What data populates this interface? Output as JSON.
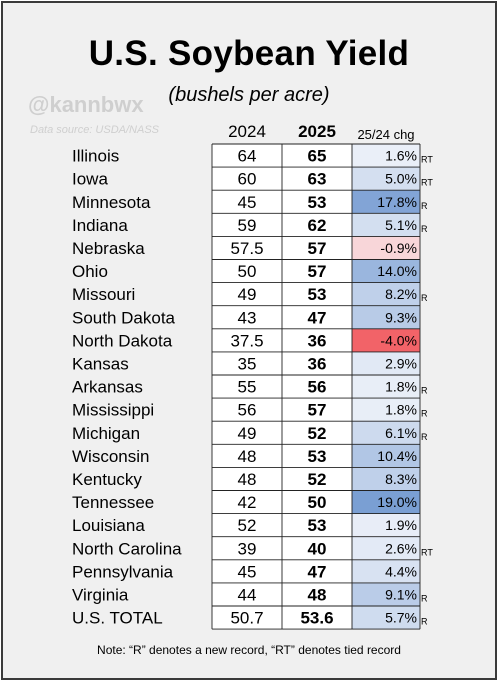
{
  "title": "U.S. Soybean Yield",
  "subtitle": "(bushels per acre)",
  "handle": "@kannbwx",
  "source": "Data source: USDA/NASS",
  "headers": {
    "y2024": "2024",
    "y2025": "2025",
    "chg": "25/24 chg"
  },
  "note": "Note: “R” denotes a new record, “RT” denotes tied record",
  "colors": {
    "pos_max": "#7a9fd3",
    "pos_min": "#f4f6fb",
    "neg_light": "#f8d6d9",
    "neg_strong": "#f26368",
    "border": "#222222"
  },
  "chart_data": {
    "type": "table",
    "title": "U.S. Soybean Yield",
    "subtitle": "(bushels per acre)",
    "columns": [
      "",
      "2024",
      "2025",
      "25/24 chg"
    ],
    "rows": [
      {
        "state": "Illinois",
        "y2024": "64",
        "y2025": "65",
        "chg": "1.6%",
        "chg_value": 1.6,
        "flag": "RT"
      },
      {
        "state": "Iowa",
        "y2024": "60",
        "y2025": "63",
        "chg": "5.0%",
        "chg_value": 5.0,
        "flag": "RT"
      },
      {
        "state": "Minnesota",
        "y2024": "45",
        "y2025": "53",
        "chg": "17.8%",
        "chg_value": 17.8,
        "flag": "R"
      },
      {
        "state": "Indiana",
        "y2024": "59",
        "y2025": "62",
        "chg": "5.1%",
        "chg_value": 5.1,
        "flag": "R"
      },
      {
        "state": "Nebraska",
        "y2024": "57.5",
        "y2025": "57",
        "chg": "-0.9%",
        "chg_value": -0.9,
        "flag": ""
      },
      {
        "state": "Ohio",
        "y2024": "50",
        "y2025": "57",
        "chg": "14.0%",
        "chg_value": 14.0,
        "flag": ""
      },
      {
        "state": "Missouri",
        "y2024": "49",
        "y2025": "53",
        "chg": "8.2%",
        "chg_value": 8.2,
        "flag": "R"
      },
      {
        "state": "South Dakota",
        "y2024": "43",
        "y2025": "47",
        "chg": "9.3%",
        "chg_value": 9.3,
        "flag": ""
      },
      {
        "state": "North Dakota",
        "y2024": "37.5",
        "y2025": "36",
        "chg": "-4.0%",
        "chg_value": -4.0,
        "flag": ""
      },
      {
        "state": "Kansas",
        "y2024": "35",
        "y2025": "36",
        "chg": "2.9%",
        "chg_value": 2.9,
        "flag": ""
      },
      {
        "state": "Arkansas",
        "y2024": "55",
        "y2025": "56",
        "chg": "1.8%",
        "chg_value": 1.8,
        "flag": "R"
      },
      {
        "state": "Mississippi",
        "y2024": "56",
        "y2025": "57",
        "chg": "1.8%",
        "chg_value": 1.8,
        "flag": "R"
      },
      {
        "state": "Michigan",
        "y2024": "49",
        "y2025": "52",
        "chg": "6.1%",
        "chg_value": 6.1,
        "flag": "R"
      },
      {
        "state": "Wisconsin",
        "y2024": "48",
        "y2025": "53",
        "chg": "10.4%",
        "chg_value": 10.4,
        "flag": ""
      },
      {
        "state": "Kentucky",
        "y2024": "48",
        "y2025": "52",
        "chg": "8.3%",
        "chg_value": 8.3,
        "flag": ""
      },
      {
        "state": "Tennessee",
        "y2024": "42",
        "y2025": "50",
        "chg": "19.0%",
        "chg_value": 19.0,
        "flag": ""
      },
      {
        "state": "Louisiana",
        "y2024": "52",
        "y2025": "53",
        "chg": "1.9%",
        "chg_value": 1.9,
        "flag": ""
      },
      {
        "state": "North Carolina",
        "y2024": "39",
        "y2025": "40",
        "chg": "2.6%",
        "chg_value": 2.6,
        "flag": "RT"
      },
      {
        "state": "Pennsylvania",
        "y2024": "45",
        "y2025": "47",
        "chg": "4.4%",
        "chg_value": 4.4,
        "flag": ""
      },
      {
        "state": "Virginia",
        "y2024": "44",
        "y2025": "48",
        "chg": "9.1%",
        "chg_value": 9.1,
        "flag": "R"
      },
      {
        "state": "U.S. TOTAL",
        "y2024": "50.7",
        "y2025": "53.6",
        "chg": "5.7%",
        "chg_value": 5.7,
        "flag": "R"
      }
    ]
  }
}
